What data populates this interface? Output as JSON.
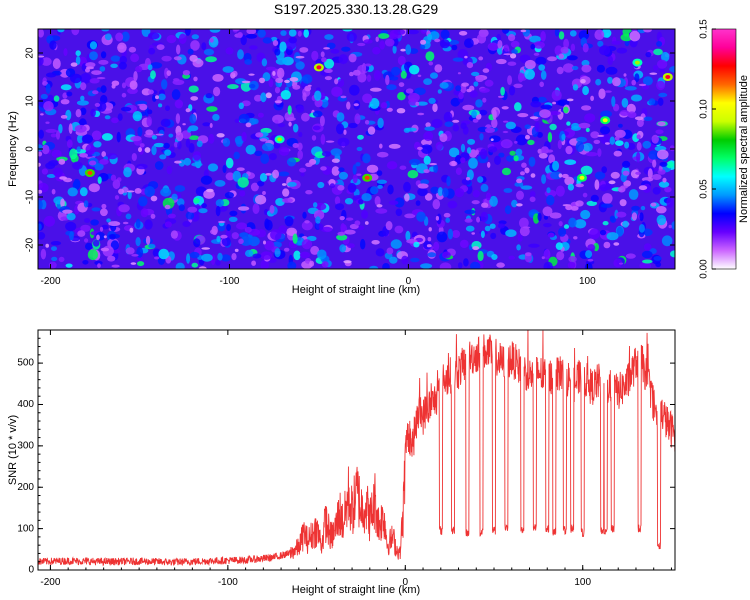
{
  "chart_data": [
    {
      "type": "heatmap",
      "title": "S197.2025.330.13.28.G29",
      "xlabel": "Height of straight line (km)",
      "ylabel": "Frequency (Hz)",
      "xlim": [
        -207,
        149
      ],
      "ylim": [
        -25,
        25
      ],
      "xticks": [
        -200,
        -100,
        0,
        100
      ],
      "yticks": [
        -20,
        -10,
        0,
        10,
        20
      ],
      "colorbar": {
        "label": "Normalized spectral amplitude",
        "range": [
          0.0,
          0.15
        ],
        "ticks": [
          "0.00",
          "0.05",
          "0.10",
          "0.15"
        ],
        "colormap": [
          "#ffffff",
          "#cc66ff",
          "#6600ff",
          "#0000ff",
          "#0099ff",
          "#00ffff",
          "#00ff66",
          "#00cc00",
          "#ccff00",
          "#ffff00",
          "#ff6600",
          "#ff0000",
          "#ff0099",
          "#ff33cc"
        ]
      },
      "texture": {
        "description": "speckled noise field, mostly 0.01-0.05 with sparse peaks",
        "typical_range": [
          0.01,
          0.05
        ],
        "peaks": [
          {
            "x": -50,
            "y": 17,
            "value": 0.13
          },
          {
            "x": 145,
            "y": 15,
            "value": 0.13
          },
          {
            "x": -178,
            "y": -5,
            "value": 0.12
          },
          {
            "x": -23,
            "y": -6,
            "value": 0.12
          },
          {
            "x": 97,
            "y": -6,
            "value": 0.1
          },
          {
            "x": 110,
            "y": 6,
            "value": 0.1
          },
          {
            "x": -72,
            "y": 2,
            "value": 0.09
          },
          {
            "x": 128,
            "y": 18,
            "value": 0.09
          }
        ]
      }
    },
    {
      "type": "line",
      "xlabel": "Height of straight line (km)",
      "ylabel": "SNR (10 * v/v)",
      "xlim": [
        -207,
        152
      ],
      "ylim": [
        0,
        580
      ],
      "xticks": [
        -200,
        -100,
        0,
        100
      ],
      "yticks": [
        0,
        100,
        200,
        300,
        400,
        500
      ],
      "color": "#ee3333",
      "series": [
        {
          "name": "SNR",
          "x": [
            -207,
            -190,
            -170,
            -150,
            -130,
            -110,
            -90,
            -75,
            -65,
            -60,
            -57,
            -55,
            -50,
            -47,
            -45,
            -42,
            -40,
            -37,
            -35,
            -32,
            -30,
            -27,
            -25,
            -22,
            -20,
            -17,
            -15,
            -12,
            -10,
            -7,
            -5,
            -3,
            -1,
            0,
            1,
            2,
            4,
            6,
            8,
            10,
            12,
            15,
            18,
            20,
            25,
            30,
            35,
            40,
            45,
            50,
            55,
            60,
            65,
            70,
            75,
            80,
            85,
            90,
            95,
            100,
            105,
            110,
            115,
            120,
            125,
            130,
            132,
            135,
            138,
            140,
            142,
            145,
            148,
            152
          ],
          "y": [
            20,
            22,
            20,
            21,
            19,
            22,
            24,
            30,
            40,
            55,
            90,
            70,
            100,
            60,
            120,
            80,
            90,
            140,
            110,
            180,
            140,
            190,
            150,
            160,
            120,
            170,
            110,
            130,
            60,
            80,
            50,
            40,
            150,
            280,
            320,
            330,
            300,
            350,
            380,
            370,
            390,
            400,
            420,
            450,
            470,
            480,
            510,
            520,
            530,
            520,
            500,
            510,
            490,
            470,
            480,
            460,
            480,
            470,
            450,
            470,
            440,
            460,
            440,
            430,
            450,
            500,
            520,
            480,
            440,
            400,
            360,
            380,
            350,
            330
          ]
        }
      ],
      "dropouts": [
        {
          "x": 20,
          "value": 95
        },
        {
          "x": 27,
          "value": 95
        },
        {
          "x": 35,
          "value": 90
        },
        {
          "x": 43,
          "value": 92
        },
        {
          "x": 50,
          "value": 95
        },
        {
          "x": 57,
          "value": 100
        },
        {
          "x": 66,
          "value": 96
        },
        {
          "x": 73,
          "value": 100
        },
        {
          "x": 80,
          "value": 98
        },
        {
          "x": 84,
          "value": 94
        },
        {
          "x": 90,
          "value": 96
        },
        {
          "x": 94,
          "value": 100
        },
        {
          "x": 100,
          "value": 90
        },
        {
          "x": 111,
          "value": 93
        },
        {
          "x": 113,
          "value": 92
        },
        {
          "x": 117,
          "value": 100
        },
        {
          "x": 132,
          "value": 100
        },
        {
          "x": 143,
          "value": 60
        }
      ]
    }
  ]
}
